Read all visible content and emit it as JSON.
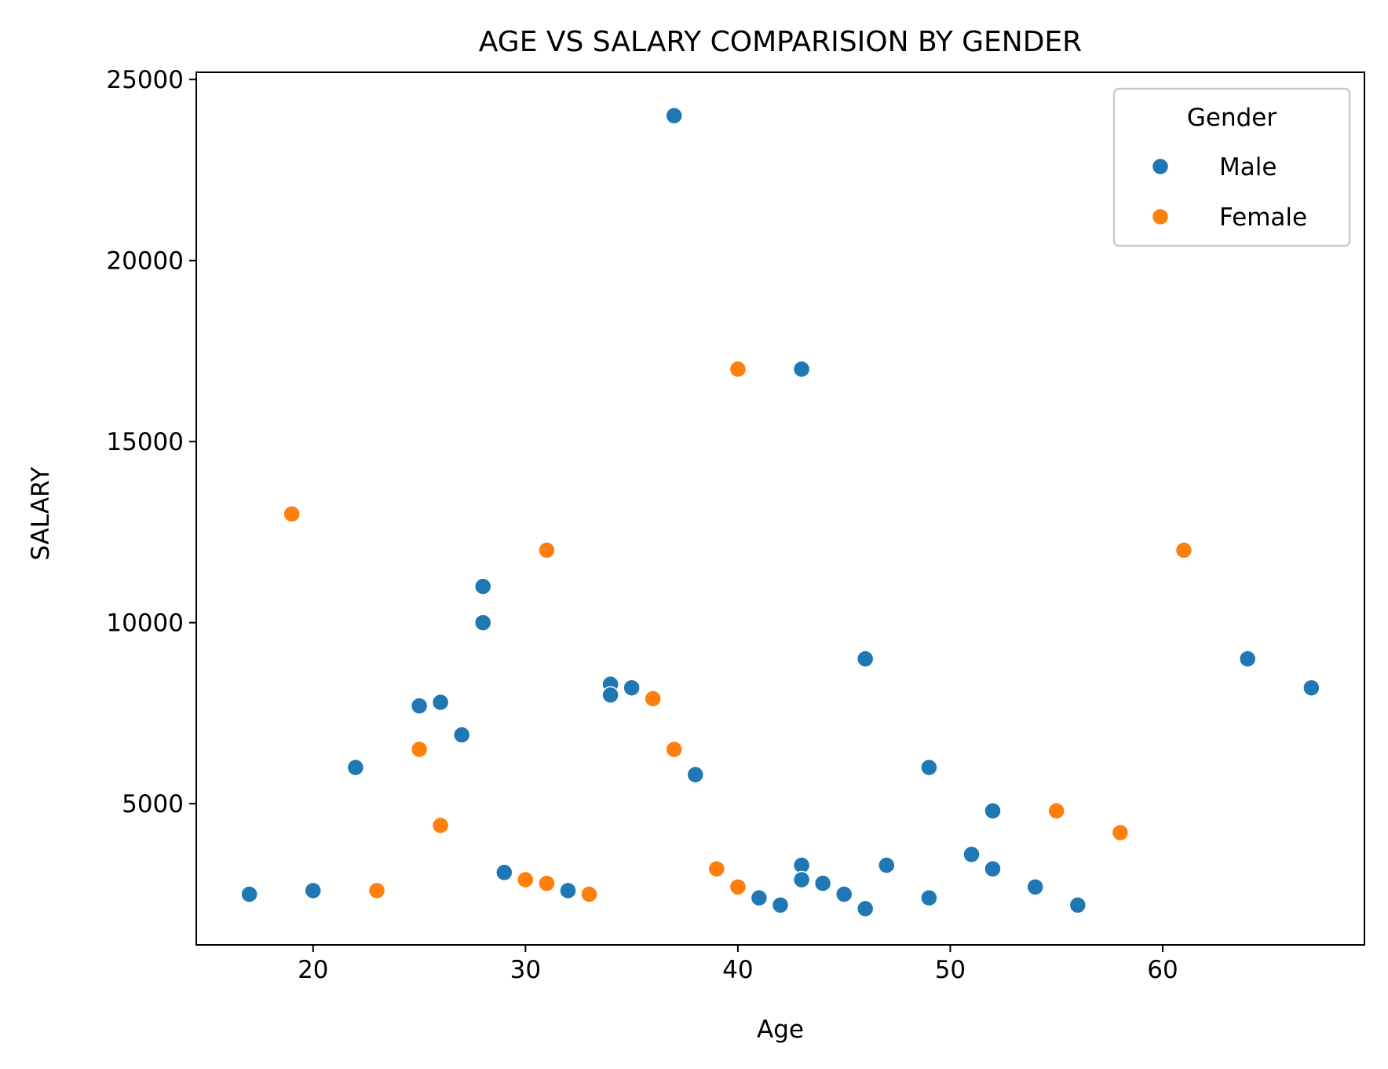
{
  "chart_data": {
    "type": "scatter",
    "title": "AGE VS SALARY COMPARISION BY GENDER",
    "xlabel": "Age",
    "ylabel": "SALARY",
    "xlim": [
      14.5,
      69.5
    ],
    "ylim": [
      1100,
      25200
    ],
    "xticks": [
      20,
      30,
      40,
      50,
      60
    ],
    "yticks": [
      5000,
      10000,
      15000,
      20000,
      25000
    ],
    "grid": false,
    "legend": {
      "title": "Gender",
      "placement": "top-right",
      "entries": [
        "Male",
        "Female"
      ]
    },
    "series": [
      {
        "name": "Male",
        "color": "#1f77b4",
        "points": [
          [
            17,
            2500
          ],
          [
            20,
            2600
          ],
          [
            22,
            6000
          ],
          [
            25,
            7700
          ],
          [
            26,
            7800
          ],
          [
            27,
            6900
          ],
          [
            28,
            11000
          ],
          [
            28,
            10000
          ],
          [
            29,
            3100
          ],
          [
            32,
            2600
          ],
          [
            34,
            8300
          ],
          [
            34,
            8000
          ],
          [
            35,
            8200
          ],
          [
            37,
            24000
          ],
          [
            38,
            5800
          ],
          [
            41,
            2400
          ],
          [
            42,
            2200
          ],
          [
            43,
            17000
          ],
          [
            43,
            3300
          ],
          [
            43,
            2900
          ],
          [
            44,
            2800
          ],
          [
            45,
            2500
          ],
          [
            46,
            9000
          ],
          [
            46,
            2100
          ],
          [
            47,
            3300
          ],
          [
            49,
            6000
          ],
          [
            49,
            2400
          ],
          [
            51,
            3600
          ],
          [
            52,
            4800
          ],
          [
            52,
            3200
          ],
          [
            54,
            2700
          ],
          [
            56,
            2200
          ],
          [
            64,
            9000
          ],
          [
            67,
            8200
          ]
        ]
      },
      {
        "name": "Female",
        "color": "#ff7f0e",
        "points": [
          [
            19,
            13000
          ],
          [
            23,
            2600
          ],
          [
            25,
            6500
          ],
          [
            26,
            4400
          ],
          [
            30,
            2900
          ],
          [
            31,
            12000
          ],
          [
            31,
            2800
          ],
          [
            33,
            2500
          ],
          [
            36,
            7900
          ],
          [
            37,
            6500
          ],
          [
            39,
            3200
          ],
          [
            40,
            17000
          ],
          [
            40,
            2700
          ],
          [
            55,
            4800
          ],
          [
            58,
            4200
          ],
          [
            61,
            12000
          ]
        ]
      }
    ]
  }
}
